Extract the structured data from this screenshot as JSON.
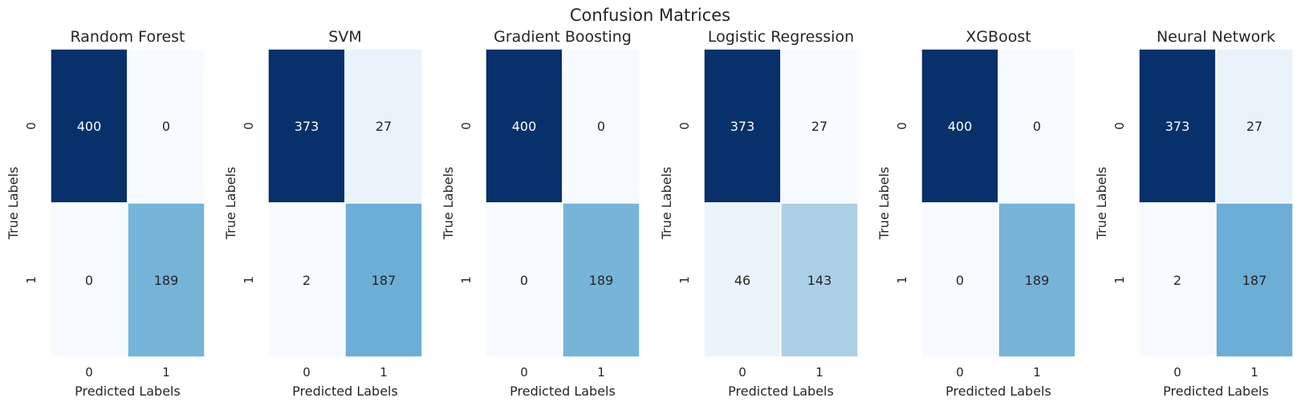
{
  "title": "Confusion Matrices",
  "chart_data": {
    "type": "heatmap",
    "title": "Confusion Matrices",
    "colormap": "Blues",
    "matrices": [
      {
        "title": "Random Forest",
        "xlabel": "Predicted Labels",
        "ylabel": "True Labels",
        "x_ticks": [
          "0",
          "1"
        ],
        "y_ticks": [
          "0",
          "1"
        ],
        "values": [
          [
            400,
            0
          ],
          [
            0,
            189
          ]
        ]
      },
      {
        "title": "SVM",
        "xlabel": "Predicted Labels",
        "ylabel": "True Labels",
        "x_ticks": [
          "0",
          "1"
        ],
        "y_ticks": [
          "0",
          "1"
        ],
        "values": [
          [
            373,
            27
          ],
          [
            2,
            187
          ]
        ]
      },
      {
        "title": "Gradient Boosting",
        "xlabel": "Predicted Labels",
        "ylabel": "True Labels",
        "x_ticks": [
          "0",
          "1"
        ],
        "y_ticks": [
          "0",
          "1"
        ],
        "values": [
          [
            400,
            0
          ],
          [
            0,
            189
          ]
        ]
      },
      {
        "title": "Logistic Regression",
        "xlabel": "Predicted Labels",
        "ylabel": "True Labels",
        "x_ticks": [
          "0",
          "1"
        ],
        "y_ticks": [
          "0",
          "1"
        ],
        "values": [
          [
            373,
            27
          ],
          [
            46,
            143
          ]
        ]
      },
      {
        "title": "XGBoost",
        "xlabel": "Predicted Labels",
        "ylabel": "True Labels",
        "x_ticks": [
          "0",
          "1"
        ],
        "y_ticks": [
          "0",
          "1"
        ],
        "values": [
          [
            400,
            0
          ],
          [
            0,
            189
          ]
        ]
      },
      {
        "title": "Neural Network",
        "xlabel": "Predicted Labels",
        "ylabel": "True Labels",
        "x_ticks": [
          "0",
          "1"
        ],
        "y_ticks": [
          "0",
          "1"
        ],
        "values": [
          [
            373,
            27
          ],
          [
            2,
            187
          ]
        ]
      }
    ]
  }
}
